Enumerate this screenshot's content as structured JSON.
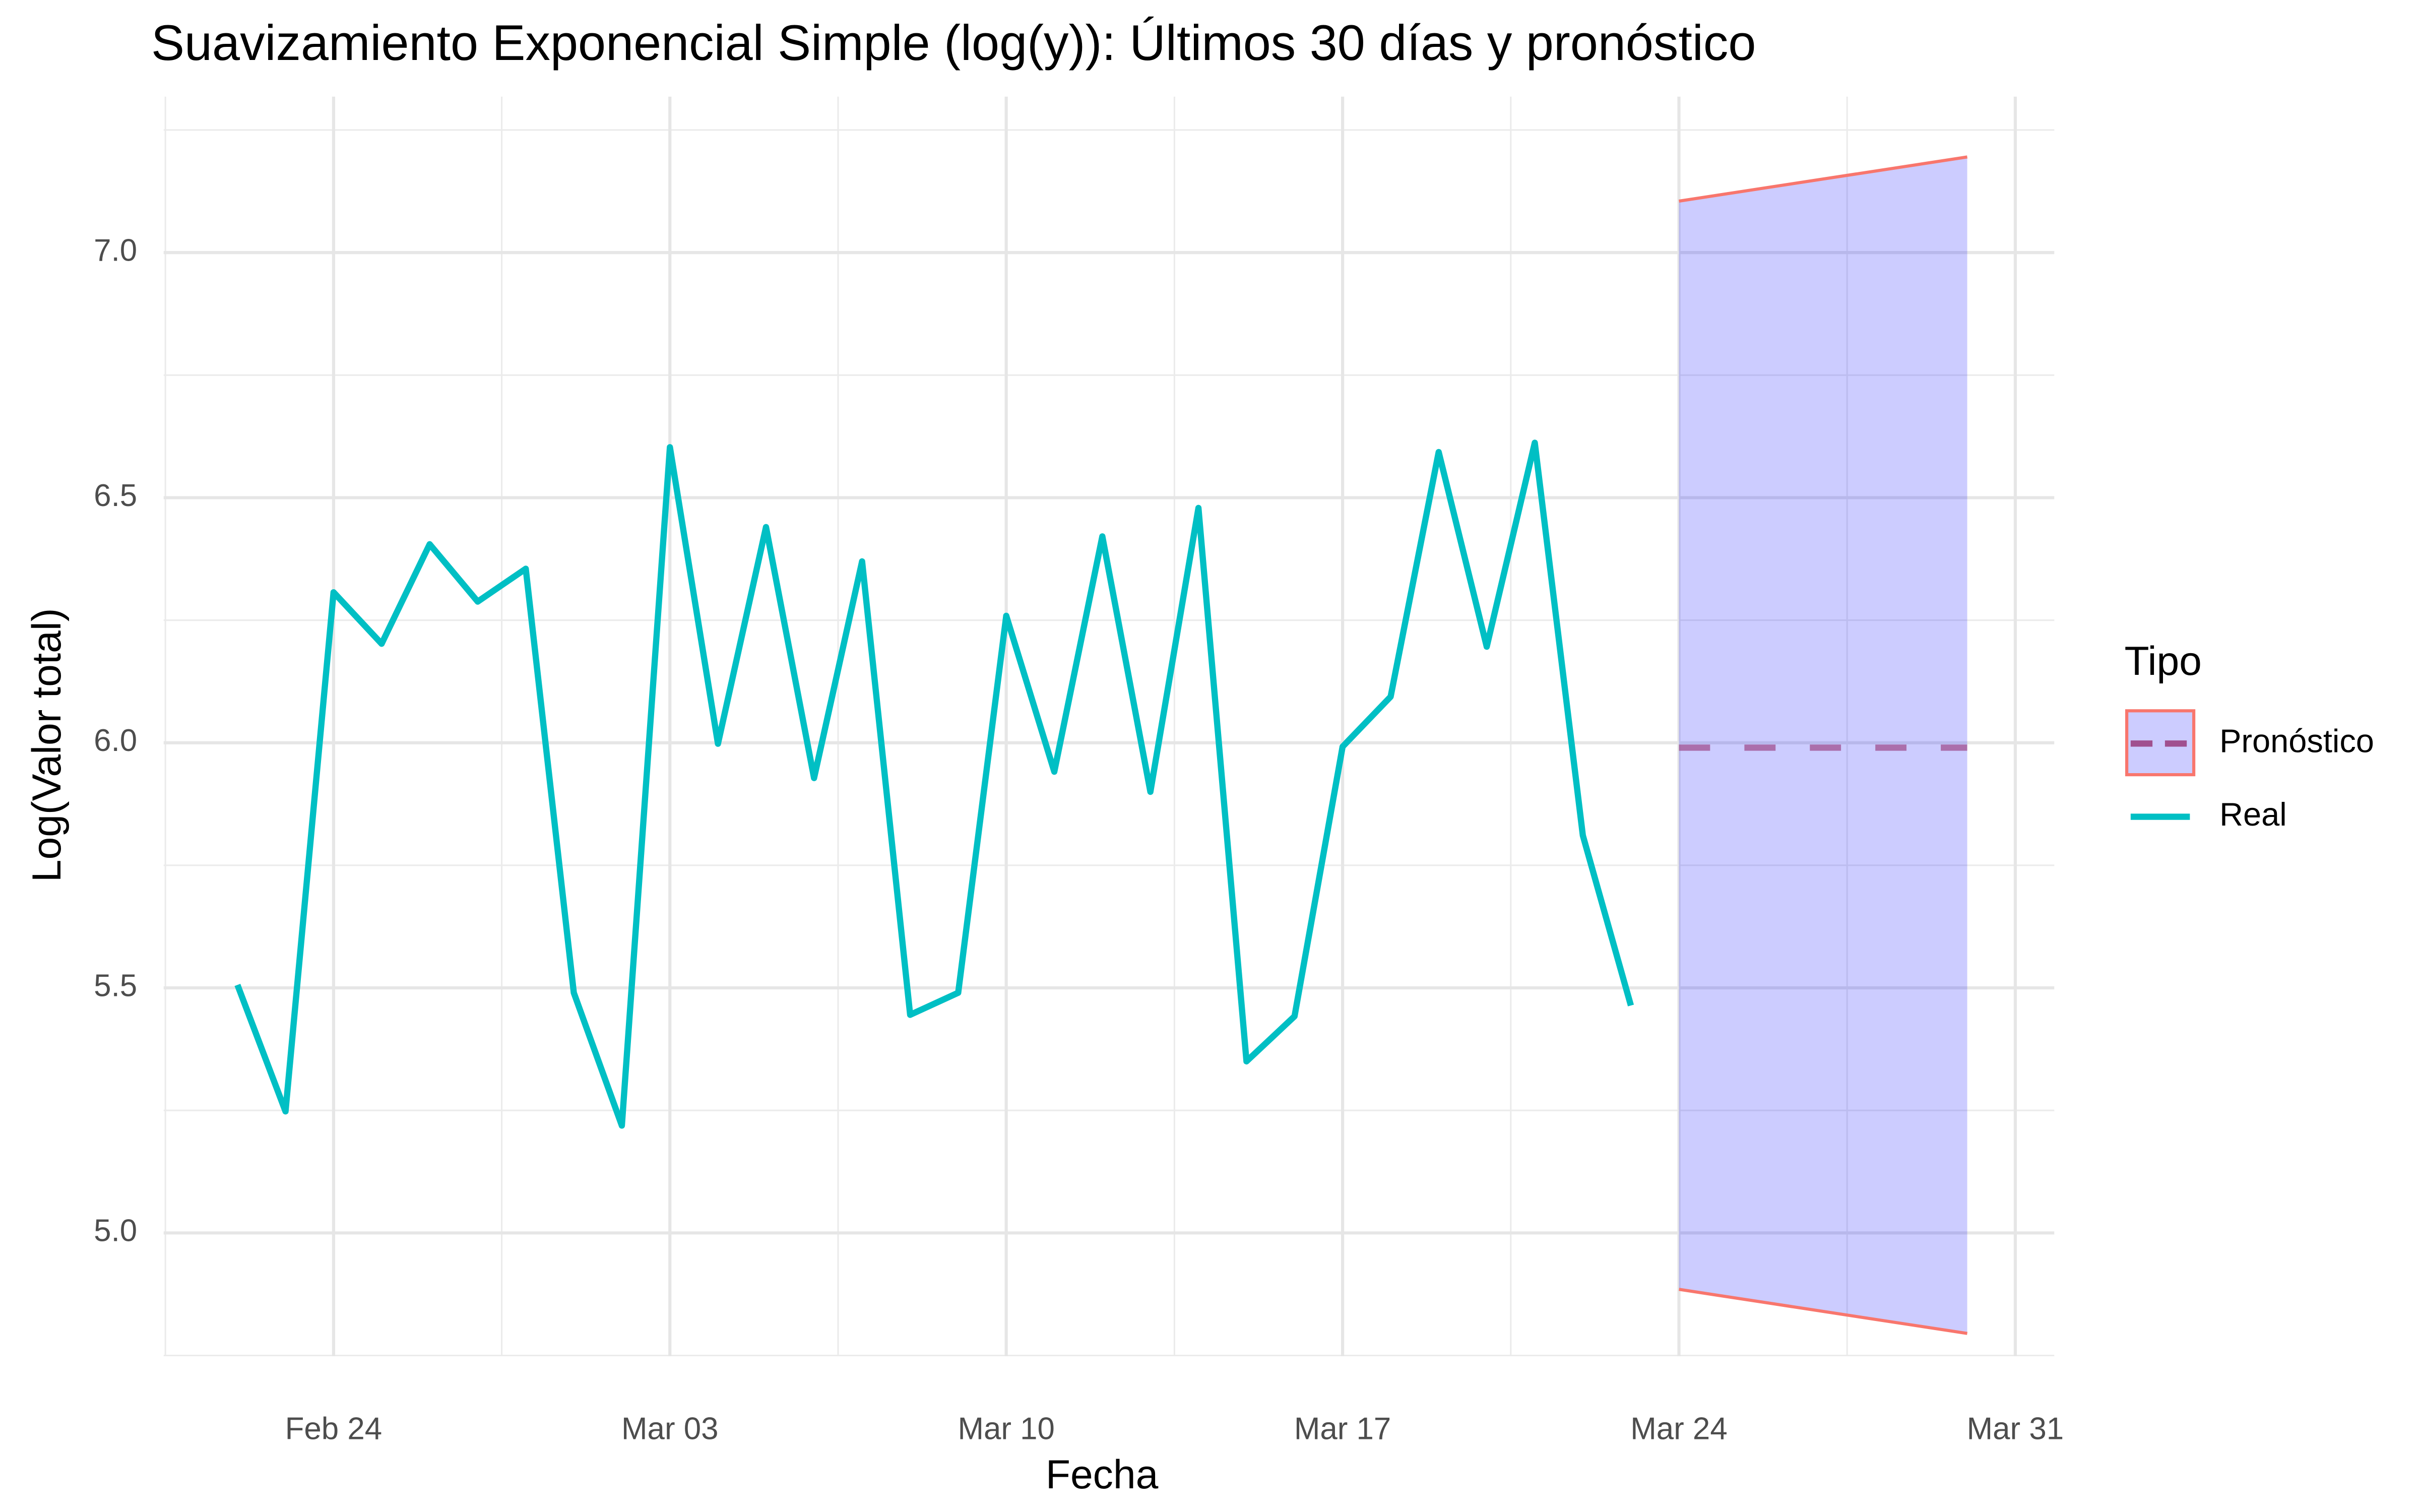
{
  "chart_data": {
    "type": "line",
    "title": "Suavizamiento Exponencial Simple (log(y)): Últimos 30 días y pronóstico",
    "x_label": "Fecha",
    "y_label": "Log(Valor total)",
    "legend_title": "Tipo",
    "legend_position": "right",
    "grid": true,
    "x": [
      "02-22",
      "02-23",
      "02-24",
      "02-25",
      "02-26",
      "02-27",
      "02-28",
      "03-01",
      "03-02",
      "03-03",
      "03-04",
      "03-05",
      "03-06",
      "03-07",
      "03-08",
      "03-09",
      "03-10",
      "03-11",
      "03-12",
      "03-13",
      "03-14",
      "03-15",
      "03-16",
      "03-17",
      "03-18",
      "03-19",
      "03-20",
      "03-21",
      "03-22",
      "03-23",
      "03-24",
      "03-25",
      "03-26",
      "03-27",
      "03-28",
      "03-29",
      "03-30"
    ],
    "xlim": [
      "02-20",
      "04-01"
    ],
    "xticks": [
      {
        "value": "02-24",
        "label": "Feb 24"
      },
      {
        "value": "03-03",
        "label": "Mar 03"
      },
      {
        "value": "03-10",
        "label": "Mar 10"
      },
      {
        "value": "03-17",
        "label": "Mar 17"
      },
      {
        "value": "03-24",
        "label": "Mar 24"
      },
      {
        "value": "03-31",
        "label": "Mar 31"
      }
    ],
    "ylim": [
      4.75,
      7.32
    ],
    "yticks": [
      {
        "value": 5,
        "label": "5.0"
      },
      {
        "value": 5.5,
        "label": "5.5"
      },
      {
        "value": 6,
        "label": "6.0"
      },
      {
        "value": 6.5,
        "label": "6.5"
      },
      {
        "value": 7,
        "label": "7.0"
      }
    ],
    "series": [
      {
        "name": "Pronóstico",
        "color": "#F8766D",
        "dashed": true,
        "band_color": "#0000FF",
        "values": [
          null,
          null,
          null,
          null,
          null,
          null,
          null,
          null,
          null,
          null,
          null,
          null,
          null,
          null,
          null,
          null,
          null,
          null,
          null,
          null,
          null,
          null,
          null,
          null,
          null,
          null,
          null,
          null,
          null,
          null,
          5.99,
          5.99,
          5.99,
          5.99,
          5.99,
          5.99,
          5.99
        ],
        "lower": [
          null,
          null,
          null,
          null,
          null,
          null,
          null,
          null,
          null,
          null,
          null,
          null,
          null,
          null,
          null,
          null,
          null,
          null,
          null,
          null,
          null,
          null,
          null,
          null,
          null,
          null,
          null,
          null,
          null,
          null,
          4.885,
          4.87,
          4.855,
          4.84,
          4.825,
          4.81,
          4.795
        ],
        "upper": [
          null,
          null,
          null,
          null,
          null,
          null,
          null,
          null,
          null,
          null,
          null,
          null,
          null,
          null,
          null,
          null,
          null,
          null,
          null,
          null,
          null,
          null,
          null,
          null,
          null,
          null,
          null,
          null,
          null,
          null,
          7.105,
          7.12,
          7.135,
          7.15,
          7.165,
          7.18,
          7.195
        ]
      },
      {
        "name": "Real",
        "color": "#00BFC4",
        "dashed": false,
        "values": [
          5.506,
          5.248,
          6.307,
          6.202,
          6.405,
          6.288,
          6.355,
          5.49,
          5.219,
          6.603,
          5.998,
          6.44,
          5.928,
          6.37,
          5.445,
          5.49,
          6.259,
          5.941,
          6.421,
          5.9,
          6.479,
          5.35,
          5.442,
          5.992,
          6.094,
          6.593,
          6.196,
          6.612,
          5.811,
          5.464,
          null,
          null,
          null,
          null,
          null,
          null,
          null
        ]
      }
    ]
  }
}
